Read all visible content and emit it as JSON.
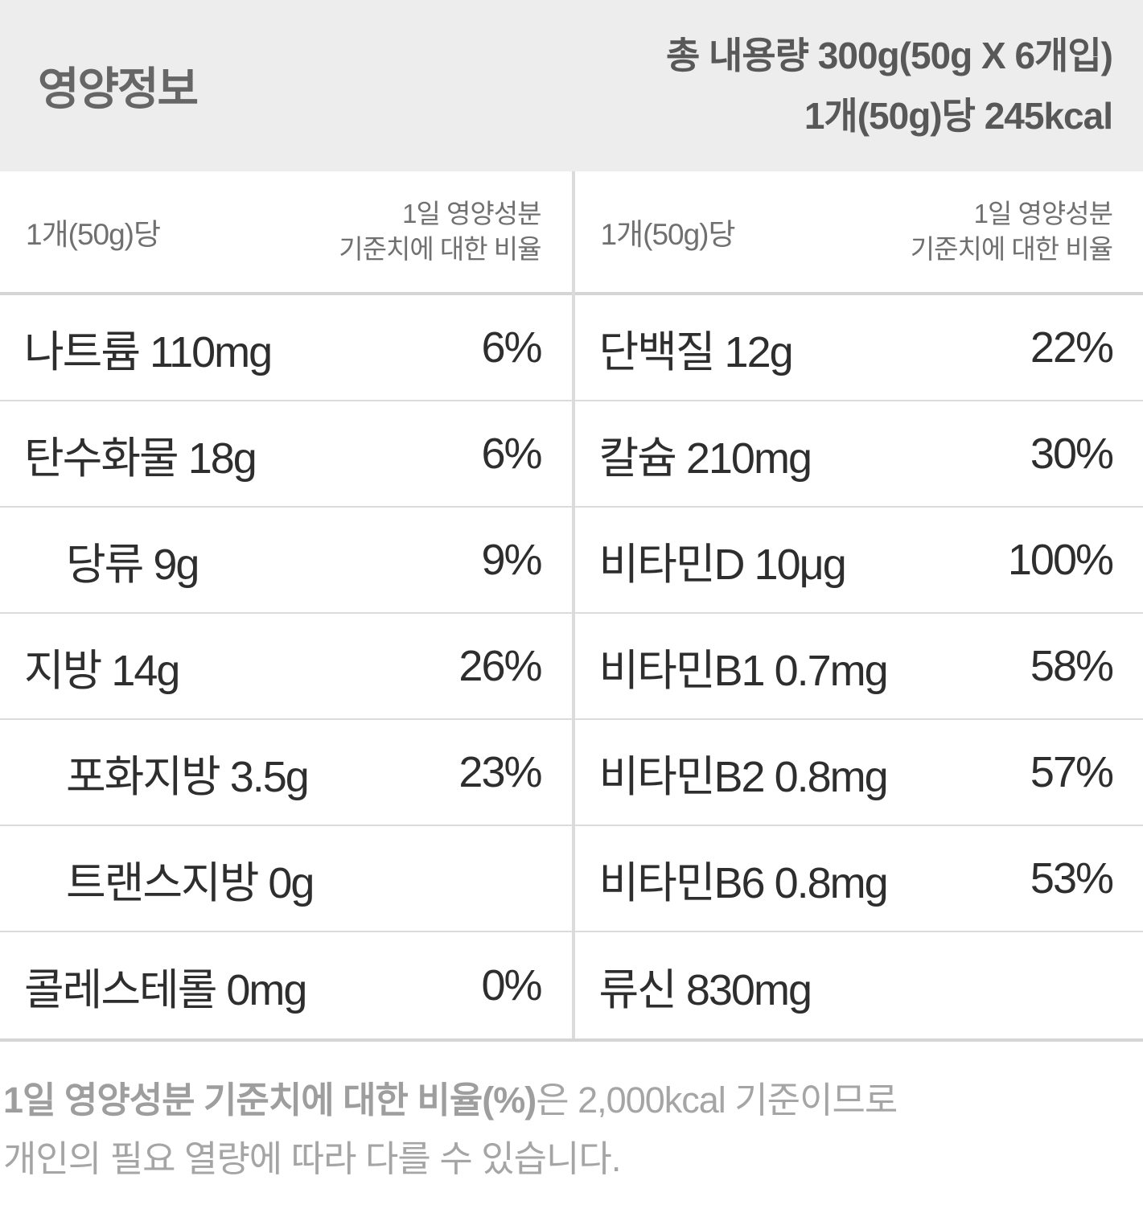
{
  "header": {
    "title": "영양정보",
    "total_contents": "총 내용량 300g(50g X 6개입)",
    "per_piece_calories": "1개(50g)당 245kcal"
  },
  "columns": [
    {
      "caption_serving": "1개(50g)당",
      "caption_dv_line1": "1일 영양성분",
      "caption_dv_line2": "기준치에 대한 비율",
      "rows": [
        {
          "label": "나트륨 110mg",
          "percent": "6%"
        },
        {
          "label": "탄수화물 18g",
          "percent": "6%"
        },
        {
          "label": "당류 9g",
          "percent": "9%"
        },
        {
          "label": "지방 14g",
          "percent": "26%"
        },
        {
          "label": "포화지방 3.5g",
          "percent": "23%"
        },
        {
          "label": "트랜스지방 0g",
          "percent": ""
        },
        {
          "label": "콜레스테롤 0mg",
          "percent": "0%"
        }
      ]
    },
    {
      "caption_serving": "1개(50g)당",
      "caption_dv_line1": "1일 영양성분",
      "caption_dv_line2": "기준치에 대한 비율",
      "rows": [
        {
          "label": "단백질 12g",
          "percent": "22%"
        },
        {
          "label": "칼슘 210mg",
          "percent": "30%"
        },
        {
          "label": "비타민D 10μg",
          "percent": "100%"
        },
        {
          "label": "비타민B1 0.7mg",
          "percent": "58%"
        },
        {
          "label": "비타민B2 0.8mg",
          "percent": "57%"
        },
        {
          "label": "비타민B6 0.8mg",
          "percent": "53%"
        },
        {
          "label": "류신 830mg",
          "percent": ""
        }
      ]
    }
  ],
  "footer": {
    "bold_text": "1일 영양성분 기준치에 대한 비율(%)",
    "line1_rest": "은 2,000kcal 기준이므로",
    "line2": "개인의 필요 열량에 따라 다를 수 있습니다."
  },
  "colors": {
    "header_bg": "#EDEDED",
    "header_text": "#666666",
    "caption_text": "#707070",
    "row_text": "#2E2E2E",
    "border_color": "#DBDBDB",
    "strong_border": "#D5D5D5",
    "footer_text": "#A5A5A5",
    "footer_bold": "#9E9E9E",
    "page_bg": "#FFFFFF"
  }
}
